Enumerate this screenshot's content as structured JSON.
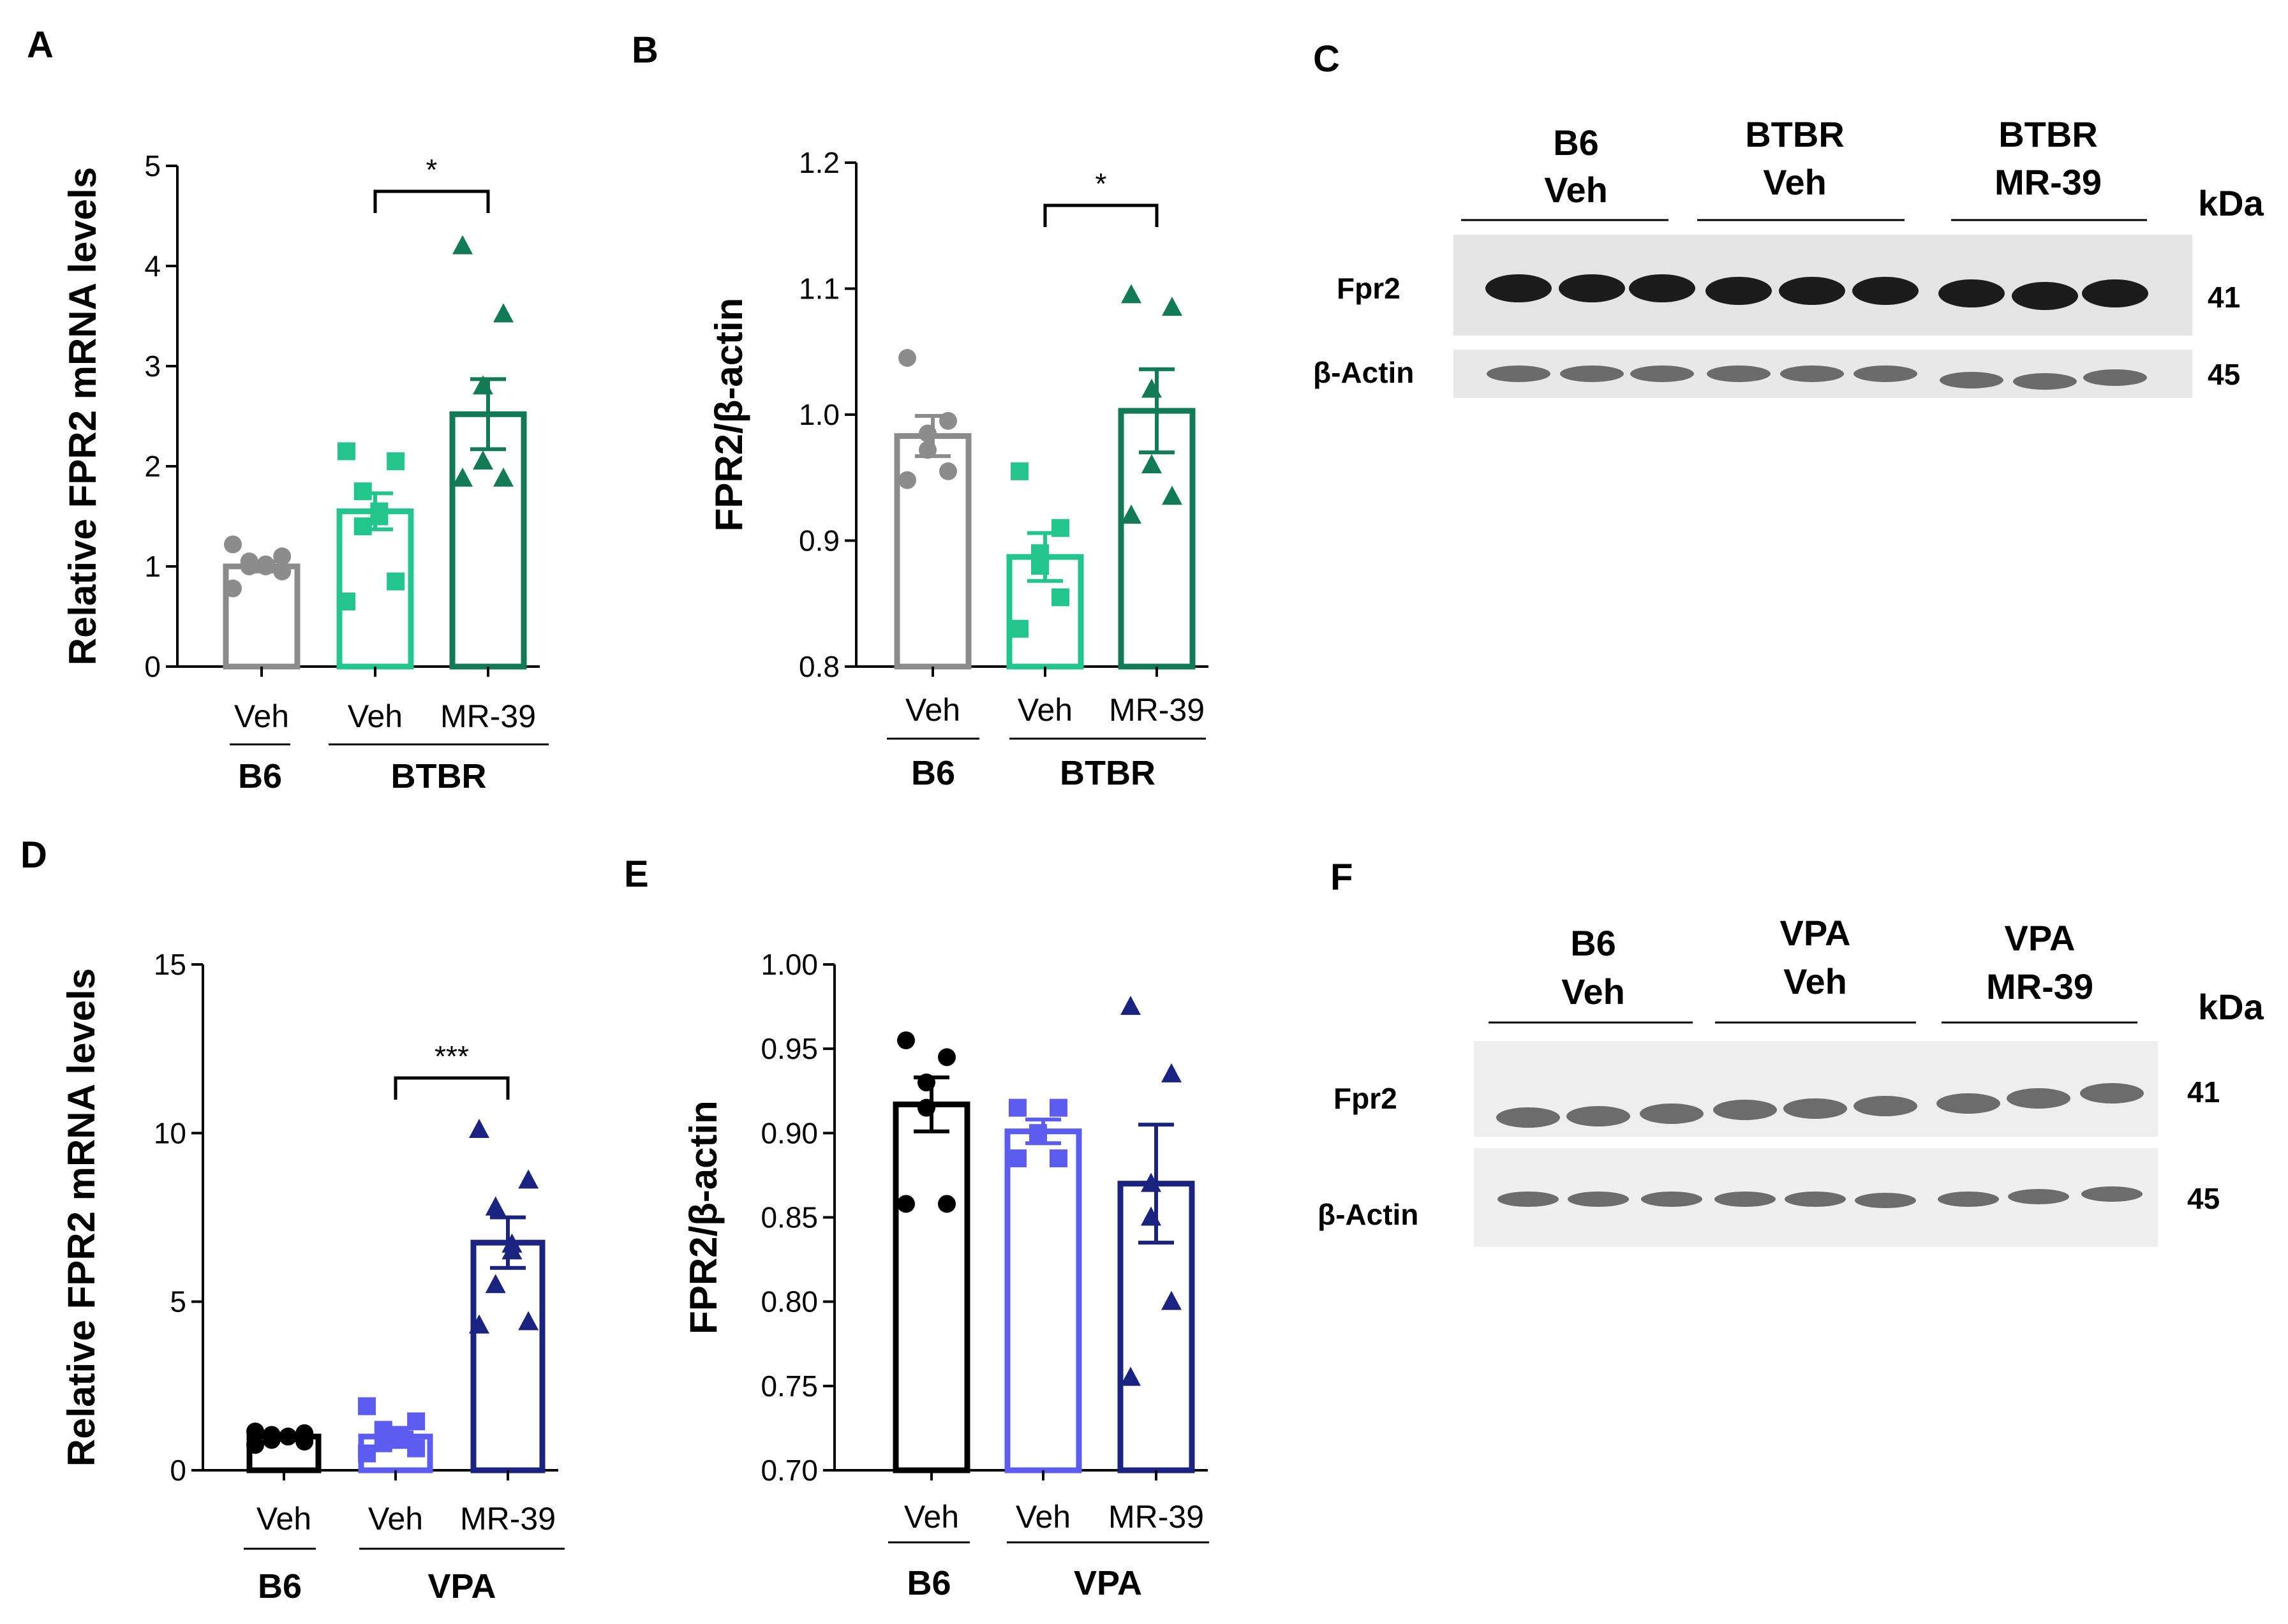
{
  "panels": {
    "A": "A",
    "B": "B",
    "C": "C",
    "D": "D",
    "E": "E",
    "F": "F"
  },
  "colors": {
    "b6_btbr": "#8c8c8c",
    "btbr_veh": "#22c58b",
    "btbr_mr39": "#127a55",
    "b6_vpa": "#000000",
    "vpa_veh": "#5c5cf0",
    "vpa_mr39": "#1a2380"
  },
  "chart_data": [
    {
      "id": "A",
      "type": "bar",
      "ylabel": "Relative FPR2 mRNA levels",
      "ylim": [
        0,
        5
      ],
      "yticks": [
        "0",
        "1",
        "2",
        "3",
        "4",
        "5"
      ],
      "categories": [
        "Veh",
        "Veh",
        "MR-39"
      ],
      "groups": [
        {
          "label": "B6",
          "span": [
            0,
            0
          ]
        },
        {
          "label": "BTBR",
          "span": [
            1,
            2
          ]
        }
      ],
      "series": [
        {
          "name": "B6 Veh",
          "mean": 1.0,
          "sem": 0.05,
          "marker": "circle",
          "color": "#8c8c8c",
          "points": [
            0.78,
            0.95,
            1.0,
            1.0,
            1.02,
            1.05,
            1.1,
            1.22
          ]
        },
        {
          "name": "BTBR Veh",
          "mean": 1.55,
          "sem": 0.18,
          "marker": "square",
          "color": "#22c58b",
          "points": [
            0.65,
            0.85,
            1.4,
            1.5,
            1.55,
            1.75,
            2.05,
            2.15
          ]
        },
        {
          "name": "BTBR MR-39",
          "mean": 2.52,
          "sem": 0.35,
          "marker": "triangle",
          "color": "#127a55",
          "points": [
            1.88,
            1.88,
            2.05,
            2.8,
            3.52,
            4.2
          ]
        }
      ],
      "significance": [
        {
          "from": 1,
          "to": 2,
          "label": "*"
        }
      ]
    },
    {
      "id": "B",
      "type": "bar",
      "ylabel": "FPR2/β-actin",
      "ylim": [
        0.8,
        1.2
      ],
      "yticks": [
        "0.8",
        "0.9",
        "1.0",
        "1.1",
        "1.2"
      ],
      "categories": [
        "Veh",
        "Veh",
        "MR-39"
      ],
      "groups": [
        {
          "label": "B6",
          "span": [
            0,
            0
          ]
        },
        {
          "label": "BTBR",
          "span": [
            1,
            2
          ]
        }
      ],
      "series": [
        {
          "name": "B6 Veh",
          "mean": 0.983,
          "sem": 0.016,
          "marker": "circle",
          "color": "#8c8c8c",
          "points": [
            0.948,
            0.955,
            0.972,
            0.985,
            0.995,
            1.045
          ]
        },
        {
          "name": "BTBR Veh",
          "mean": 0.887,
          "sem": 0.019,
          "marker": "square",
          "color": "#22c58b",
          "points": [
            0.83,
            0.855,
            0.88,
            0.89,
            0.91,
            0.955
          ]
        },
        {
          "name": "BTBR MR-39",
          "mean": 1.003,
          "sem": 0.033,
          "marker": "triangle",
          "color": "#127a55",
          "points": [
            0.92,
            0.935,
            0.96,
            1.02,
            1.085,
            1.095
          ]
        }
      ],
      "significance": [
        {
          "from": 1,
          "to": 2,
          "label": "*"
        }
      ]
    },
    {
      "id": "D",
      "type": "bar",
      "ylabel": "Relative FPR2 mRNA levels",
      "ylim": [
        0,
        15
      ],
      "yticks": [
        "0",
        "5",
        "10",
        "15"
      ],
      "categories": [
        "Veh",
        "Veh",
        "MR-39"
      ],
      "groups": [
        {
          "label": "B6",
          "span": [
            0,
            0
          ]
        },
        {
          "label": "VPA",
          "span": [
            1,
            2
          ]
        }
      ],
      "series": [
        {
          "name": "B6 Veh",
          "mean": 1.0,
          "sem": 0.05,
          "marker": "circle",
          "color": "#000000",
          "points": [
            0.75,
            0.85,
            0.9,
            1.0,
            1.0,
            1.05,
            1.1,
            1.15
          ]
        },
        {
          "name": "VPA Veh",
          "mean": 1.0,
          "sem": 0.12,
          "marker": "square",
          "color": "#5c5cf0",
          "points": [
            0.5,
            0.65,
            0.8,
            0.9,
            1.05,
            1.2,
            1.45,
            1.9
          ]
        },
        {
          "name": "VPA MR-39",
          "mean": 6.75,
          "sem": 0.75,
          "marker": "triangle",
          "color": "#1a2380",
          "points": [
            4.3,
            4.4,
            5.5,
            6.5,
            6.7,
            7.8,
            8.6,
            10.1
          ]
        }
      ],
      "significance": [
        {
          "from": 1,
          "to": 2,
          "label": "***"
        }
      ]
    },
    {
      "id": "E",
      "type": "bar",
      "ylabel": "FPR2/β-actin",
      "ylim": [
        0.7,
        1.0
      ],
      "yticks": [
        "0.70",
        "0.75",
        "0.80",
        "0.85",
        "0.90",
        "0.95",
        "1.00"
      ],
      "categories": [
        "Veh",
        "Veh",
        "MR-39"
      ],
      "groups": [
        {
          "label": "B6",
          "span": [
            0,
            0
          ]
        },
        {
          "label": "VPA",
          "span": [
            1,
            2
          ]
        }
      ],
      "series": [
        {
          "name": "B6 Veh",
          "mean": 0.917,
          "sem": 0.016,
          "marker": "circle",
          "color": "#000000",
          "points": [
            0.858,
            0.858,
            0.915,
            0.93,
            0.945,
            0.955
          ]
        },
        {
          "name": "VPA Veh",
          "mean": 0.901,
          "sem": 0.007,
          "marker": "square",
          "color": "#5c5cf0",
          "points": [
            0.885,
            0.885,
            0.9,
            0.9,
            0.915,
            0.915
          ]
        },
        {
          "name": "VPA MR-39",
          "mean": 0.87,
          "sem": 0.035,
          "marker": "triangle",
          "color": "#1a2380",
          "points": [
            0.755,
            0.8,
            0.85,
            0.87,
            0.935,
            0.975
          ]
        }
      ],
      "significance": []
    }
  ],
  "blots": {
    "C": {
      "groups": [
        {
          "line1": "B6",
          "line2": "Veh"
        },
        {
          "line1": "BTBR",
          "line2": "Veh"
        },
        {
          "line1": "BTBR",
          "line2": "MR-39"
        }
      ],
      "kda": "kDa",
      "rows": [
        {
          "label": "Fpr2",
          "kda": "41"
        },
        {
          "label": "β-Actin",
          "kda": "45"
        }
      ]
    },
    "F": {
      "groups": [
        {
          "line1": "B6",
          "line2": "Veh"
        },
        {
          "line1": "VPA",
          "line2": "Veh"
        },
        {
          "line1": "VPA",
          "line2": "MR-39"
        }
      ],
      "kda": "kDa",
      "rows": [
        {
          "label": "Fpr2",
          "kda": "41"
        },
        {
          "label": "β-Actin",
          "kda": "45"
        }
      ]
    }
  }
}
